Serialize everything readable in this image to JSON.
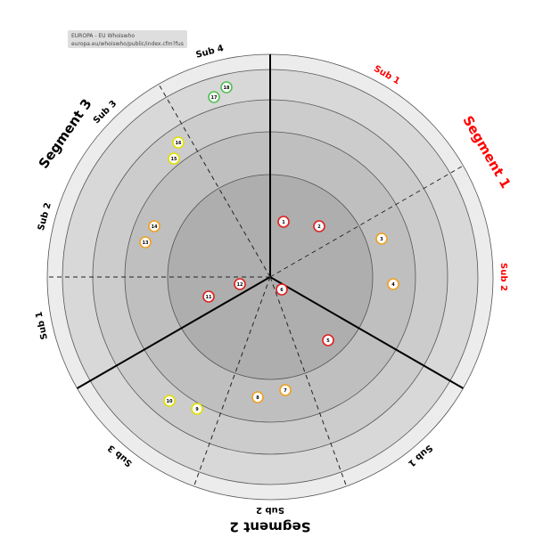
{
  "tooltip": {
    "title": "EUROPA - EU Whoiswho",
    "url": "europa.eu/whoiswho/public/index.cfm?fuseact..."
  },
  "colors": {
    "ring_fills": [
      "#aeaeae",
      "#bfbfbf",
      "#cccccc",
      "#d8d8d8",
      "#ececec"
    ],
    "segment_highlight": "#ff0000",
    "segment_normal": "#000000",
    "rings": {
      "red": "#e02020",
      "orange": "#f0a020",
      "yellow": "#e0e000",
      "green": "#50c050"
    }
  },
  "segments": [
    {
      "name": "Segment 1",
      "highlighted": true,
      "subs": [
        "Sub 1",
        "Sub 2"
      ]
    },
    {
      "name": "Segment 2",
      "highlighted": false,
      "subs": [
        "Sub 1",
        "Sub 2",
        "Sub 3"
      ]
    },
    {
      "name": "Segment 3",
      "highlighted": false,
      "subs": [
        "Sub 1",
        "Sub 2",
        "Sub 3",
        "Sub 4"
      ]
    }
  ],
  "blips": [
    {
      "label": "1",
      "ring": "red"
    },
    {
      "label": "2",
      "ring": "red"
    },
    {
      "label": "3",
      "ring": "orange"
    },
    {
      "label": "4",
      "ring": "orange"
    },
    {
      "label": "5",
      "ring": "red"
    },
    {
      "label": "6",
      "ring": "red"
    },
    {
      "label": "7",
      "ring": "orange"
    },
    {
      "label": "8",
      "ring": "orange"
    },
    {
      "label": "9",
      "ring": "yellow"
    },
    {
      "label": "10",
      "ring": "yellow"
    },
    {
      "label": "11",
      "ring": "red"
    },
    {
      "label": "12",
      "ring": "red"
    },
    {
      "label": "13",
      "ring": "orange"
    },
    {
      "label": "14",
      "ring": "orange"
    },
    {
      "label": "15",
      "ring": "yellow"
    },
    {
      "label": "16",
      "ring": "yellow"
    },
    {
      "label": "17",
      "ring": "green"
    },
    {
      "label": "18",
      "ring": "green"
    }
  ]
}
